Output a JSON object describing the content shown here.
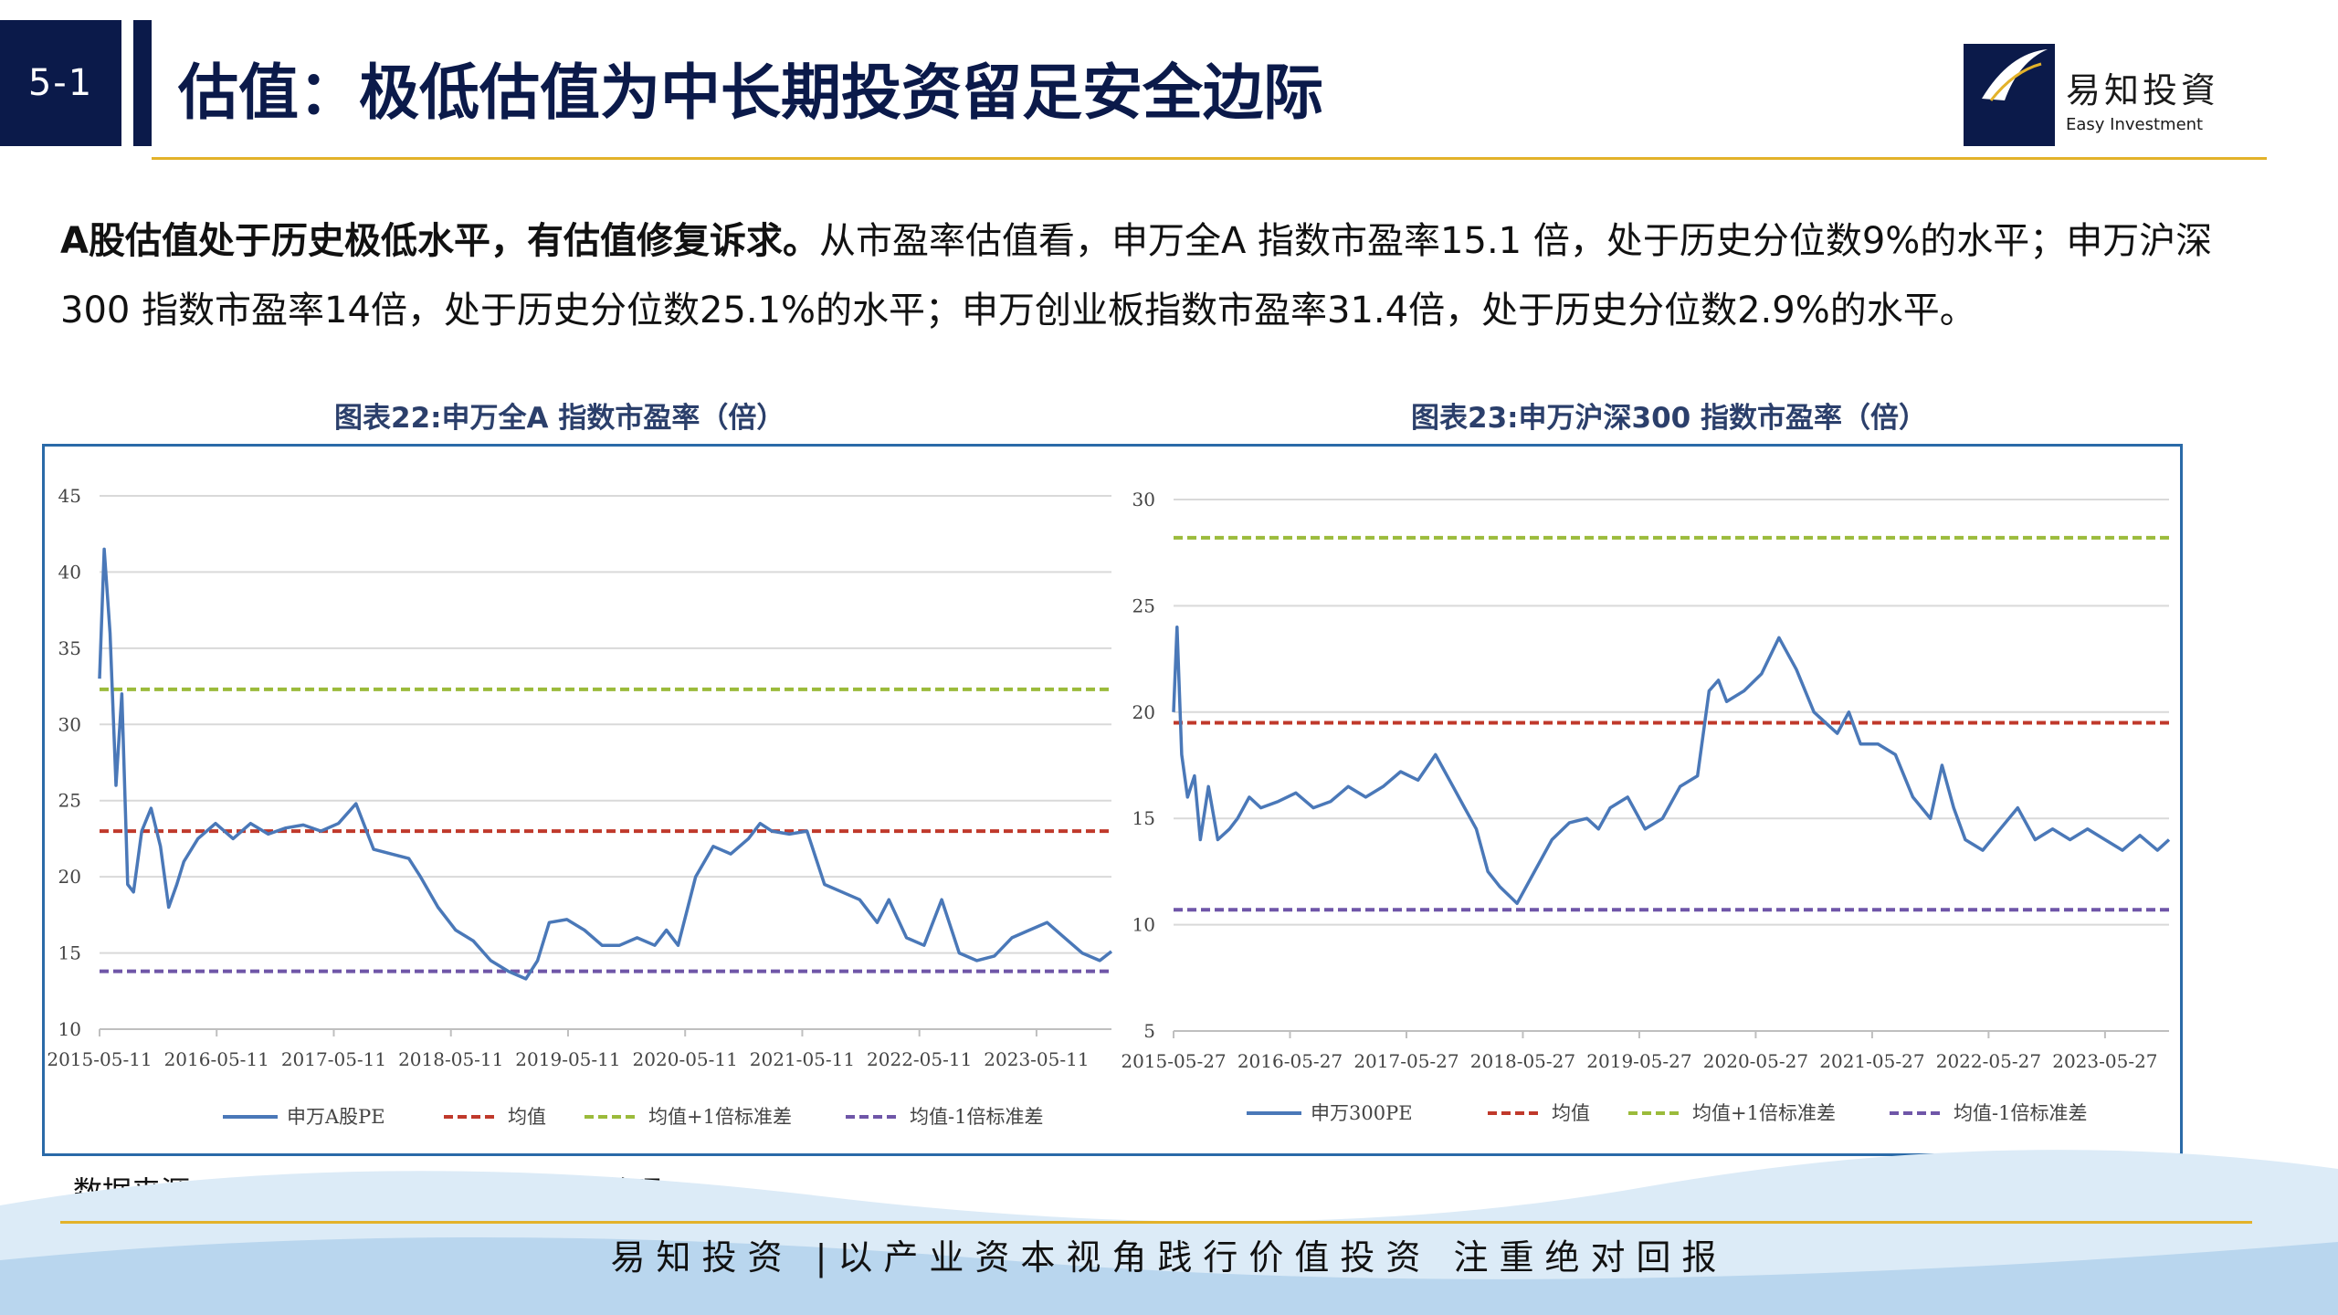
{
  "header": {
    "section": "5-1",
    "title": "估值：极低估值为中长期投资留足安全边际",
    "logo_cn": "易知投資",
    "logo_en": "Easy Investment",
    "logo_box_text_1": "Easy",
    "logo_box_text_2": "Investment"
  },
  "intro": {
    "bold": "A股估值处于历史极低水平，有估值修复诉求。",
    "text": "从市盈率估值看，申万全A 指数市盈率15.1 倍，处于历史分位数9%的水平；申万沪深300 指数市盈率14倍，处于历史分位数25.1%的水平；申万创业板指数市盈率31.4倍，处于历史分位数2.9%的水平。"
  },
  "source": "数据来源：Wind  中原证券 易知投资研究整理",
  "footer": {
    "slogan": "易知投资 |以产业资本视角践行价值投资  注重绝对回报"
  },
  "colors": {
    "navy": "#0b1a4a",
    "gold": "#e3b22a",
    "series": "#4a78b8",
    "mean": "#c0392b",
    "plus": "#9bbb3b",
    "minus": "#6f56a8"
  },
  "chart_data": [
    {
      "type": "line",
      "title": "图表22:申万全A 指数市盈率（倍）",
      "ylim": [
        10,
        45
      ],
      "yticks": [
        "10",
        "15",
        "20",
        "25",
        "30",
        "35",
        "40",
        "45"
      ],
      "xticks": [
        "2015-05-11",
        "2016-05-11",
        "2017-05-11",
        "2018-05-11",
        "2019-05-11",
        "2020-05-11",
        "2021-05-11",
        "2022-05-11",
        "2023-05-11"
      ],
      "xrange": [
        2015.36,
        2024.0
      ],
      "series": [
        {
          "name": "申万A股PE",
          "x": [
            2015.36,
            2015.4,
            2015.45,
            2015.5,
            2015.55,
            2015.6,
            2015.65,
            2015.72,
            2015.8,
            2015.88,
            2015.95,
            2016.02,
            2016.08,
            2016.2,
            2016.35,
            2016.5,
            2016.65,
            2016.8,
            2016.95,
            2017.1,
            2017.25,
            2017.4,
            2017.55,
            2017.7,
            2017.85,
            2018.0,
            2018.1,
            2018.25,
            2018.4,
            2018.55,
            2018.7,
            2018.85,
            2019.0,
            2019.1,
            2019.2,
            2019.35,
            2019.5,
            2019.65,
            2019.8,
            2019.95,
            2020.1,
            2020.2,
            2020.3,
            2020.45,
            2020.6,
            2020.75,
            2020.9,
            2021.0,
            2021.1,
            2021.25,
            2021.4,
            2021.55,
            2021.7,
            2021.85,
            2022.0,
            2022.1,
            2022.25,
            2022.4,
            2022.55,
            2022.7,
            2022.85,
            2023.0,
            2023.15,
            2023.3,
            2023.45,
            2023.6,
            2023.75,
            2023.9,
            2024.0
          ],
          "values": [
            33,
            41.5,
            36,
            26,
            32,
            19.5,
            19,
            23,
            24.5,
            22,
            18,
            19.5,
            21,
            22.5,
            23.5,
            22.5,
            23.5,
            22.8,
            23.2,
            23.4,
            23,
            23.5,
            24.8,
            21.8,
            21.5,
            21.2,
            20,
            18,
            16.5,
            15.8,
            14.5,
            13.8,
            13.3,
            14.5,
            17,
            17.2,
            16.5,
            15.5,
            15.5,
            16,
            15.5,
            16.5,
            15.5,
            20,
            22,
            21.5,
            22.5,
            23.5,
            23,
            22.8,
            23,
            19.5,
            19,
            18.5,
            17,
            18.5,
            16,
            15.5,
            18.5,
            15,
            14.5,
            14.8,
            16,
            16.5,
            17,
            16,
            15,
            14.5,
            15.1
          ]
        },
        {
          "name": "均值",
          "values": [
            23.0
          ]
        },
        {
          "name": "均值+1倍标准差",
          "values": [
            32.3
          ]
        },
        {
          "name": "均值-1倍标准差",
          "values": [
            13.8
          ]
        }
      ]
    },
    {
      "type": "line",
      "title": "图表23:申万沪深300 指数市盈率（倍）",
      "ylim": [
        5,
        30
      ],
      "yticks": [
        "5",
        "10",
        "15",
        "20",
        "25",
        "30"
      ],
      "xticks": [
        "2015-05-27",
        "2016-05-27",
        "2017-05-27",
        "2018-05-27",
        "2019-05-27",
        "2020-05-27",
        "2021-05-27",
        "2022-05-27",
        "2023-05-27"
      ],
      "xrange": [
        2015.4,
        2023.95
      ],
      "series": [
        {
          "name": "申万300PE",
          "x": [
            2015.4,
            2015.43,
            2015.47,
            2015.52,
            2015.58,
            2015.63,
            2015.7,
            2015.78,
            2015.88,
            2015.95,
            2016.05,
            2016.15,
            2016.3,
            2016.45,
            2016.6,
            2016.75,
            2016.9,
            2017.05,
            2017.2,
            2017.35,
            2017.5,
            2017.65,
            2017.8,
            2017.9,
            2018.0,
            2018.1,
            2018.2,
            2018.35,
            2018.5,
            2018.65,
            2018.8,
            2018.95,
            2019.05,
            2019.15,
            2019.3,
            2019.45,
            2019.6,
            2019.75,
            2019.9,
            2020.0,
            2020.08,
            2020.15,
            2020.3,
            2020.45,
            2020.6,
            2020.75,
            2020.9,
            2021.0,
            2021.1,
            2021.2,
            2021.3,
            2021.45,
            2021.6,
            2021.75,
            2021.9,
            2022.0,
            2022.1,
            2022.2,
            2022.35,
            2022.5,
            2022.65,
            2022.8,
            2022.95,
            2023.1,
            2023.25,
            2023.4,
            2023.55,
            2023.7,
            2023.85,
            2023.95
          ],
          "values": [
            20,
            24,
            18,
            16,
            17,
            14,
            16.5,
            14,
            14.5,
            15,
            16,
            15.5,
            15.8,
            16.2,
            15.5,
            15.8,
            16.5,
            16,
            16.5,
            17.2,
            16.8,
            18,
            16.5,
            15.5,
            14.5,
            12.5,
            11.8,
            11,
            12.5,
            14,
            14.8,
            15,
            14.5,
            15.5,
            16,
            14.5,
            15,
            16.5,
            17,
            21,
            21.5,
            20.5,
            21,
            21.8,
            23.5,
            22,
            20,
            19.5,
            19,
            20,
            18.5,
            18.5,
            18,
            16,
            15,
            17.5,
            15.5,
            14,
            13.5,
            14.5,
            15.5,
            14,
            14.5,
            14,
            14.5,
            14,
            13.5,
            14.2,
            13.5,
            14
          ]
        },
        {
          "name": "均值",
          "values": [
            19.5
          ]
        },
        {
          "name": "均值+1倍标准差",
          "values": [
            28.2
          ]
        },
        {
          "name": "均值-1倍标准差",
          "values": [
            10.7
          ]
        }
      ]
    }
  ]
}
